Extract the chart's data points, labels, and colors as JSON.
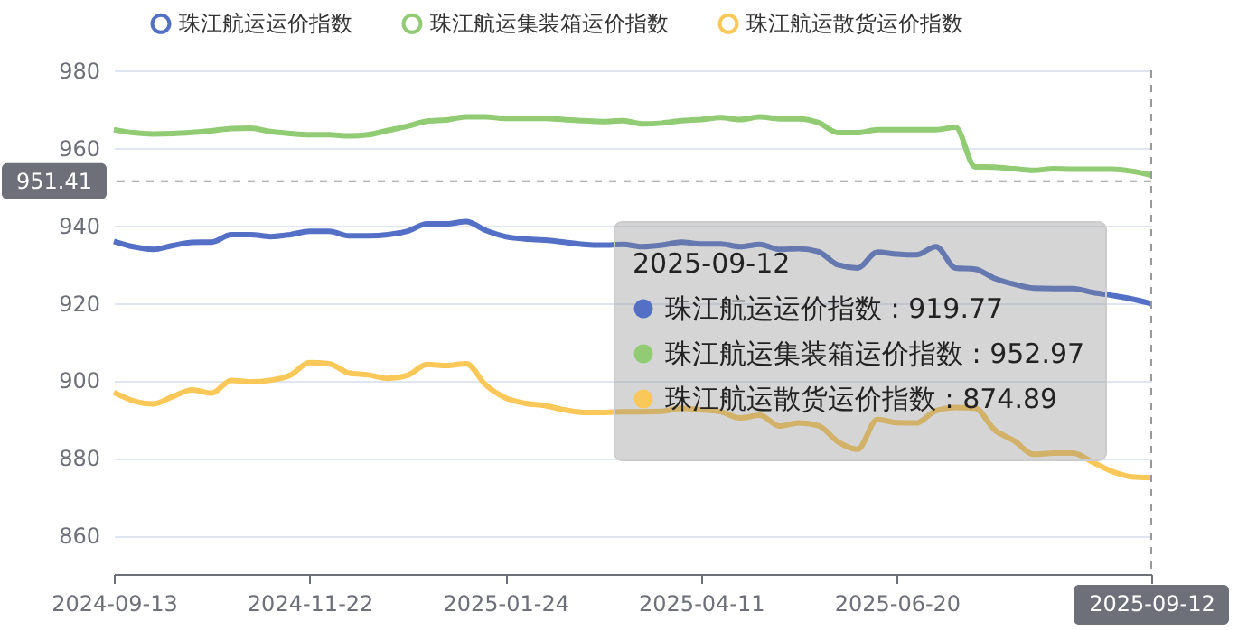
{
  "chart_data": {
    "type": "line",
    "categories": [
      "2024-09-13",
      null,
      null,
      null,
      null,
      null,
      null,
      null,
      null,
      null,
      "2024-11-22",
      null,
      null,
      null,
      null,
      null,
      null,
      null,
      null,
      null,
      "2025-01-24",
      null,
      null,
      null,
      null,
      null,
      null,
      null,
      null,
      null,
      "2025-04-11",
      null,
      null,
      null,
      null,
      null,
      null,
      null,
      null,
      null,
      "2025-06-20",
      null,
      null,
      null,
      null,
      null,
      null,
      null,
      null,
      null,
      null,
      null,
      null,
      "2025-09-12"
    ],
    "series": [
      {
        "name": "珠江航运运价指数",
        "color": "#5470c6",
        "values": [
          935.9,
          934.5,
          933.8,
          934.8,
          935.6,
          935.7,
          937.6,
          937.6,
          937.1,
          937.6,
          938.5,
          938.5,
          937.3,
          937.3,
          937.6,
          938.5,
          940.4,
          940.4,
          941.0,
          938.7,
          937.1,
          936.5,
          936.2,
          935.7,
          935.1,
          934.9,
          935.1,
          934.5,
          934.9,
          935.7,
          935.2,
          935.2,
          934.5,
          935.1,
          933.8,
          934.0,
          933.2,
          929.8,
          929.0,
          933.1,
          932.6,
          932.4,
          934.5,
          929.0,
          928.7,
          926.3,
          924.8,
          923.8,
          923.7,
          923.7,
          922.7,
          921.9,
          921.0,
          919.77
        ]
      },
      {
        "name": "珠江航运集装箱运价指数",
        "color": "#91cc75",
        "values": [
          964.7,
          963.9,
          963.6,
          963.7,
          964.0,
          964.4,
          965.0,
          965.1,
          964.2,
          963.7,
          963.4,
          963.4,
          963.1,
          963.4,
          964.5,
          965.6,
          966.9,
          967.2,
          968.0,
          968.0,
          967.6,
          967.6,
          967.6,
          967.3,
          967.0,
          966.8,
          967.0,
          966.2,
          966.4,
          967.0,
          967.3,
          967.8,
          967.3,
          968.0,
          967.5,
          967.5,
          966.5,
          963.9,
          963.9,
          964.7,
          964.7,
          964.7,
          964.7,
          965.3,
          955.1,
          955.0,
          954.6,
          954.2,
          954.6,
          954.5,
          954.5,
          954.5,
          954.0,
          952.97
        ]
      },
      {
        "name": "珠江航运散货运价指数",
        "color": "#fac858",
        "values": [
          896.9,
          894.7,
          893.9,
          895.8,
          897.5,
          896.7,
          900.0,
          899.6,
          900.0,
          901.3,
          904.6,
          904.3,
          901.9,
          901.4,
          900.5,
          901.3,
          904.1,
          903.8,
          904.3,
          898.8,
          895.5,
          894.1,
          893.5,
          892.4,
          891.7,
          891.7,
          891.9,
          891.9,
          892.0,
          892.8,
          892.4,
          891.9,
          890.3,
          891.0,
          888.2,
          889.0,
          888.3,
          884.1,
          882.2,
          889.9,
          889.1,
          889.0,
          892.2,
          893.0,
          892.8,
          887.2,
          884.4,
          880.9,
          881.2,
          881.2,
          878.9,
          876.5,
          875.1,
          874.89
        ]
      }
    ],
    "ylim": [
      850,
      980
    ],
    "yticks": [
      860,
      880,
      900,
      920,
      940,
      960,
      980
    ],
    "grid": "y",
    "legend": "top",
    "marker": "none",
    "ref_lines": [
      {
        "axis": "y",
        "value": 951.41,
        "label": "951.41"
      },
      {
        "axis": "x",
        "value": "2025-09-12"
      }
    ],
    "annotations": [
      "2025-09-12",
      "珠江航运运价指数 : 919.77",
      "珠江航运集装箱运价指数 : 952.97",
      "珠江航运散货运价指数 : 874.89"
    ]
  }
}
